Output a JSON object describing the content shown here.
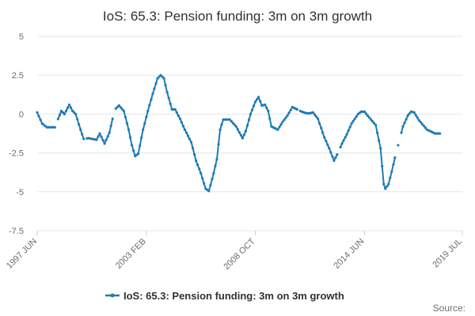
{
  "chart_data": {
    "type": "line",
    "title": "IoS: 65.3: Pension funding: 3m on 3m growth",
    "xlabel": "",
    "ylabel": "",
    "ylim": [
      -7.5,
      5
    ],
    "yticks": [
      5,
      2.5,
      0,
      -2.5,
      -5,
      -7.5
    ],
    "ytick_labels": [
      "5",
      "2.5",
      "0",
      "-2.5",
      "-5",
      "-7.5"
    ],
    "x_start": "1997 JUN",
    "x_end": "2019 JUL",
    "xtick_labels": [
      "1997 JUN",
      "2003 FEB",
      "2008 OCT",
      "2014 JUN",
      "2019 JUL"
    ],
    "grid": true,
    "legend_position": "bottom",
    "color": "#1e7bb5",
    "series": [
      {
        "name": "IoS: 65.3: Pension funding: 3m on 3m growth",
        "start": "1997 JUN",
        "frequency": "monthly",
        "gaps": [
          "1998 JUN",
          "1999 DEC",
          "2001 JUN",
          "2011 JAN",
          "2013 FEB",
          "2016 FEB",
          "2016 APR"
        ],
        "keyframes": [
          [
            "1997 JUN",
            0.1
          ],
          [
            "1997 SEP",
            -0.6
          ],
          [
            "1997 DEC",
            -0.85
          ],
          [
            "1998 MAY",
            -0.85
          ],
          [
            "1998 SEP",
            0.2
          ],
          [
            "1998 NOV",
            0.0
          ],
          [
            "1999 FEB",
            0.6
          ],
          [
            "1999 APR",
            0.2
          ],
          [
            "1999 JUN",
            0.0
          ],
          [
            "1999 SEP",
            -1.0
          ],
          [
            "1999 NOV",
            -1.6
          ],
          [
            "2000 FEB",
            -1.55
          ],
          [
            "2000 JUL",
            -1.65
          ],
          [
            "2000 SEP",
            -1.25
          ],
          [
            "2000 DEC",
            -1.9
          ],
          [
            "2001 MAR",
            -1.2
          ],
          [
            "2001 MAY",
            -0.3
          ],
          [
            "2001 JUL",
            0.35
          ],
          [
            "2001 SEP",
            0.55
          ],
          [
            "2001 DEC",
            0.2
          ],
          [
            "2002 MAR",
            -1.0
          ],
          [
            "2002 MAY",
            -2.0
          ],
          [
            "2002 JUL",
            -2.7
          ],
          [
            "2002 SEP",
            -2.55
          ],
          [
            "2002 DEC",
            -1.0
          ],
          [
            "2003 MAR",
            0.2
          ],
          [
            "2003 JUN",
            1.3
          ],
          [
            "2003 SEP",
            2.3
          ],
          [
            "2003 NOV",
            2.5
          ],
          [
            "2004 JAN",
            2.3
          ],
          [
            "2004 MAR",
            1.4
          ],
          [
            "2004 JUN",
            0.3
          ],
          [
            "2004 AUG",
            0.3
          ],
          [
            "2004 NOV",
            -0.3
          ],
          [
            "2005 FEB",
            -1.0
          ],
          [
            "2005 JUN",
            -1.8
          ],
          [
            "2005 SEP",
            -3.0
          ],
          [
            "2005 DEC",
            -3.8
          ],
          [
            "2006 MAR",
            -4.8
          ],
          [
            "2006 MAY",
            -4.95
          ],
          [
            "2006 AUG",
            -3.8
          ],
          [
            "2006 OCT",
            -2.9
          ],
          [
            "2006 DEC",
            -1.0
          ],
          [
            "2007 FEB",
            -0.35
          ],
          [
            "2007 JUN",
            -0.35
          ],
          [
            "2007 OCT",
            -0.8
          ],
          [
            "2008 FEB",
            -1.55
          ],
          [
            "2008 APR",
            -1.1
          ],
          [
            "2008 JUL",
            0.0
          ],
          [
            "2008 OCT",
            0.8
          ],
          [
            "2008 DEC",
            1.1
          ],
          [
            "2009 FEB",
            0.55
          ],
          [
            "2009 APR",
            0.6
          ],
          [
            "2009 JUN",
            0.2
          ],
          [
            "2009 AUG",
            -0.8
          ],
          [
            "2009 DEC",
            -1.0
          ],
          [
            "2010 MAR",
            -0.5
          ],
          [
            "2010 JUN",
            -0.1
          ],
          [
            "2010 SEP",
            0.45
          ],
          [
            "2010 DEC",
            0.3
          ],
          [
            "2011 MAR",
            0.15
          ],
          [
            "2011 JUN",
            0.05
          ],
          [
            "2011 AUG",
            0.05
          ],
          [
            "2011 OCT",
            0.1
          ],
          [
            "2012 JAN",
            -0.3
          ],
          [
            "2012 MAY",
            -1.5
          ],
          [
            "2012 AUG",
            -2.2
          ],
          [
            "2012 NOV",
            -3.0
          ],
          [
            "2013 JAN",
            -2.6
          ],
          [
            "2013 APR",
            -1.9
          ],
          [
            "2013 JUL",
            -1.3
          ],
          [
            "2013 OCT",
            -0.6
          ],
          [
            "2014 FEB",
            0.0
          ],
          [
            "2014 APR",
            0.15
          ],
          [
            "2014 JUN",
            0.15
          ],
          [
            "2014 AUG",
            -0.1
          ],
          [
            "2014 OCT",
            -0.35
          ],
          [
            "2015 JAN",
            -0.7
          ],
          [
            "2015 APR",
            -2.2
          ],
          [
            "2015 JUN",
            -4.5
          ],
          [
            "2015 JUL",
            -4.8
          ],
          [
            "2015 SEP",
            -4.5
          ],
          [
            "2015 NOV",
            -3.7
          ],
          [
            "2016 JAN",
            -2.8
          ],
          [
            "2016 MAR",
            -2.0
          ],
          [
            "2016 JUN",
            -0.8
          ],
          [
            "2016 SEP",
            -0.1
          ],
          [
            "2016 NOV",
            0.15
          ],
          [
            "2017 JAN",
            0.1
          ],
          [
            "2017 APR",
            -0.4
          ],
          [
            "2017 SEP",
            -1.0
          ],
          [
            "2018 FEB",
            -1.25
          ],
          [
            "2018 MAY",
            -1.25
          ]
        ]
      }
    ]
  },
  "legend": {
    "label": "IoS: 65.3: Pension funding: 3m on 3m growth"
  },
  "footer": {
    "source_label": "Source:"
  }
}
